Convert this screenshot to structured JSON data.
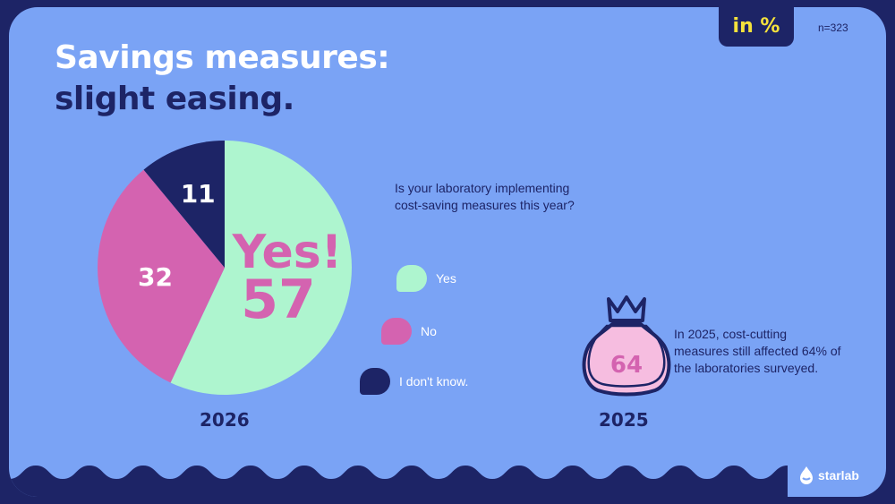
{
  "title": {
    "line1": "Savings measures:",
    "line2": "slight easing."
  },
  "unit": "in %",
  "sample": "n=323",
  "question": "Is your laboratory implementing cost-saving measures this year?",
  "colors": {
    "yes": "#aef5cf",
    "no": "#d463b0",
    "dont_know": "#1d2466",
    "background": "#7aa3f5",
    "dark": "#1d2466",
    "accent": "#f5e23c",
    "bag": "#f6bde0"
  },
  "chart_data": {
    "type": "pie",
    "year_label": "2026",
    "categories": [
      "Yes",
      "No",
      "I don't know."
    ],
    "values": [
      57,
      32,
      11
    ],
    "callout": "Yes!"
  },
  "comparison": {
    "year_label": "2025",
    "value": "64",
    "icon": "money-bag-icon",
    "text": "In 2025, cost-cutting measures still affected 64% of the laboratories surveyed."
  },
  "brand": "starlab"
}
